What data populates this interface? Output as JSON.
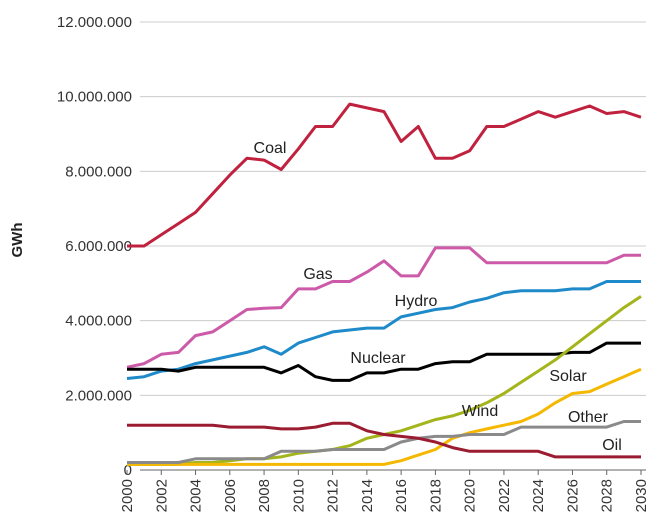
{
  "chart_data": {
    "type": "line",
    "y_label": "GWh",
    "x": [
      2000,
      2001,
      2002,
      2003,
      2004,
      2005,
      2006,
      2007,
      2008,
      2009,
      2010,
      2011,
      2012,
      2013,
      2014,
      2015,
      2016,
      2017,
      2018,
      2019,
      2020,
      2021,
      2022,
      2023,
      2024,
      2025,
      2026,
      2027,
      2028,
      2029,
      2030
    ],
    "xlim": [
      2000,
      2030
    ],
    "xticks": [
      2000,
      2002,
      2004,
      2006,
      2008,
      2010,
      2012,
      2014,
      2016,
      2018,
      2020,
      2022,
      2024,
      2026,
      2028,
      2030
    ],
    "ylim": [
      0,
      12000000
    ],
    "yticks": [
      0,
      {
        "value": 2000000,
        "label": "2.000.000"
      },
      {
        "value": 4000000,
        "label": "4.000.000"
      },
      {
        "value": 6000000,
        "label": "6.000.000"
      },
      {
        "value": 8000000,
        "label": "8.000.000"
      },
      {
        "value": 10000000,
        "label": "10.000.000"
      },
      {
        "value": 12000000,
        "label": "12.000.000"
      }
    ],
    "grid": true,
    "series": [
      {
        "name": "Coal",
        "color": "#c0213e",
        "values": [
          6000000,
          6000000,
          6300000,
          6600000,
          6900000,
          7400000,
          7900000,
          8350000,
          8300000,
          8050000,
          8600000,
          9200000,
          9200000,
          9800000,
          9700000,
          9600000,
          8800000,
          9200000,
          8350000,
          8350000,
          8550000,
          9200000,
          9200000,
          9400000,
          9600000,
          9450000,
          9600000,
          9750000,
          9550000,
          9600000,
          9450000
        ]
      },
      {
        "name": "Gas",
        "color": "#cc5aa8",
        "values": [
          2750000,
          2850000,
          3100000,
          3150000,
          3600000,
          3700000,
          4000000,
          4300000,
          4330000,
          4350000,
          4850000,
          4850000,
          5050000,
          5050000,
          5300000,
          5600000,
          5200000,
          5200000,
          5950000,
          5950000,
          5950000,
          5550000,
          5550000,
          5550000,
          5550000,
          5550000,
          5550000,
          5550000,
          5550000,
          5750000,
          5750000
        ]
      },
      {
        "name": "Hydro",
        "color": "#1f8ac9",
        "values": [
          2450000,
          2500000,
          2650000,
          2700000,
          2850000,
          2950000,
          3050000,
          3150000,
          3300000,
          3100000,
          3400000,
          3550000,
          3700000,
          3750000,
          3800000,
          3800000,
          4100000,
          4200000,
          4300000,
          4350000,
          4500000,
          4600000,
          4750000,
          4800000,
          4800000,
          4800000,
          4850000,
          4850000,
          5050000,
          5050000,
          5050000
        ]
      },
      {
        "name": "Nuclear",
        "color": "#000000",
        "values": [
          2700000,
          2700000,
          2700000,
          2650000,
          2750000,
          2750000,
          2750000,
          2750000,
          2750000,
          2600000,
          2800000,
          2500000,
          2400000,
          2400000,
          2600000,
          2600000,
          2700000,
          2700000,
          2850000,
          2900000,
          2900000,
          3100000,
          3100000,
          3100000,
          3100000,
          3100000,
          3150000,
          3150000,
          3400000,
          3400000,
          3400000
        ]
      },
      {
        "name": "Wind",
        "color": "#a3b51b",
        "values": [
          150000,
          150000,
          150000,
          150000,
          200000,
          200000,
          250000,
          300000,
          300000,
          350000,
          450000,
          500000,
          550000,
          650000,
          850000,
          950000,
          1050000,
          1200000,
          1350000,
          1450000,
          1600000,
          1800000,
          2050000,
          2350000,
          2650000,
          2950000,
          3300000,
          3650000,
          4000000,
          4350000,
          4650000
        ]
      },
      {
        "name": "Solar",
        "color": "#f5b800",
        "values": [
          150000,
          150000,
          150000,
          150000,
          150000,
          150000,
          150000,
          150000,
          150000,
          150000,
          150000,
          150000,
          150000,
          150000,
          150000,
          150000,
          250000,
          400000,
          550000,
          850000,
          1000000,
          1100000,
          1200000,
          1300000,
          1500000,
          1800000,
          2050000,
          2100000,
          2300000,
          2500000,
          2700000
        ]
      },
      {
        "name": "Other",
        "color": "#8a8a8a",
        "values": [
          200000,
          200000,
          200000,
          200000,
          300000,
          300000,
          300000,
          300000,
          300000,
          500000,
          500000,
          500000,
          550000,
          550000,
          550000,
          550000,
          750000,
          850000,
          900000,
          900000,
          950000,
          950000,
          950000,
          1150000,
          1150000,
          1150000,
          1150000,
          1150000,
          1150000,
          1300000,
          1300000
        ]
      },
      {
        "name": "Oil",
        "color": "#9b1b30",
        "values": [
          1200000,
          1200000,
          1200000,
          1200000,
          1200000,
          1200000,
          1150000,
          1150000,
          1150000,
          1100000,
          1100000,
          1150000,
          1250000,
          1250000,
          1050000,
          950000,
          900000,
          850000,
          750000,
          600000,
          500000,
          500000,
          500000,
          500000,
          500000,
          350000,
          350000,
          350000,
          350000,
          350000,
          350000
        ]
      }
    ]
  }
}
